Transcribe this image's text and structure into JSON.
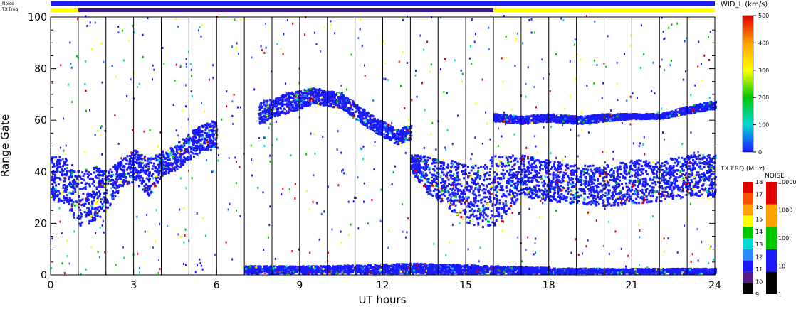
{
  "chart_data": {
    "type": "heatmap",
    "xlabel": "UT hours",
    "ylabel": "Range Gate",
    "xlim": [
      0,
      24
    ],
    "ylim": [
      0,
      100
    ],
    "xticks": [
      "0",
      "3",
      "6",
      "9",
      "12",
      "15",
      "18",
      "21",
      "24"
    ],
    "yticks": [
      "0",
      "20",
      "40",
      "60",
      "80",
      "100"
    ],
    "hour_gridlines": true,
    "bars": {
      "noise_label": "Noise",
      "txfreq_label": "TX Freq",
      "noise_level_segments": [
        {
          "from": 0,
          "to": 24,
          "color": "#1a1aff"
        }
      ],
      "txfreq_segments": [
        {
          "from": 0,
          "to": 1.0,
          "color": "#ffff00"
        },
        {
          "from": 1.0,
          "to": 16.0,
          "color": "#3a1a8a"
        },
        {
          "from": 16.0,
          "to": 24,
          "color": "#ffff00"
        }
      ]
    },
    "colorbars": {
      "width": {
        "title": "WID_L (km/s)",
        "ticks": [
          "0",
          "100",
          "200",
          "300",
          "400",
          "500"
        ],
        "range": [
          0,
          500
        ]
      },
      "txfreq": {
        "title": "TX FRQ (MHz)",
        "ticks": [
          "9",
          "10",
          "11",
          "12",
          "13",
          "14",
          "15",
          "16",
          "17",
          "18"
        ],
        "colors": [
          "#000000",
          "#5a1a8a",
          "#1a1aff",
          "#2a8aff",
          "#00d8d8",
          "#00c800",
          "#ffff00",
          "#ffa000",
          "#ff5000",
          "#e00000"
        ]
      },
      "noise": {
        "title": "NOISE",
        "ticks": [
          "1",
          "10",
          "100",
          "1000",
          "10000"
        ],
        "colors": [
          "#000000",
          "#1a1aff",
          "#00c800",
          "#ffa000",
          "#e00000"
        ]
      }
    },
    "structures": [
      {
        "name": "band-early",
        "x": [
          0.0,
          0.5,
          1.0,
          1.5,
          2.0,
          2.5,
          3.0,
          3.5,
          4.0,
          4.5,
          5.0,
          5.5,
          6.0
        ],
        "lower": [
          28,
          27,
          18,
          20,
          24,
          33,
          36,
          30,
          38,
          40,
          44,
          48,
          48
        ],
        "upper": [
          46,
          45,
          40,
          42,
          40,
          44,
          48,
          45,
          47,
          50,
          55,
          58,
          60
        ]
      },
      {
        "name": "arc-upper",
        "x": [
          7.5,
          8.5,
          9.5,
          10.5,
          11.5,
          12.5,
          13.0
        ],
        "lower": [
          58,
          62,
          66,
          64,
          56,
          50,
          52
        ],
        "upper": [
          66,
          70,
          72,
          70,
          62,
          56,
          58
        ]
      },
      {
        "name": "band-late",
        "x": [
          13.0,
          13.5,
          14.0,
          14.5,
          15.0,
          15.5,
          16.0,
          17.0,
          18.0,
          19.0,
          20.0,
          21.0,
          22.0,
          23.0,
          24.0
        ],
        "lower": [
          40,
          32,
          28,
          24,
          20,
          18,
          18,
          30,
          28,
          27,
          26,
          27,
          28,
          30,
          30
        ],
        "upper": [
          46,
          46,
          44,
          44,
          42,
          42,
          46,
          46,
          44,
          42,
          42,
          44,
          44,
          46,
          46
        ]
      },
      {
        "name": "band-upper-late",
        "x": [
          16.0,
          17.0,
          18.0,
          19.0,
          20.0,
          21.0,
          22.0,
          23.0,
          24.0
        ],
        "lower": [
          59,
          58,
          59,
          58,
          59,
          60,
          60,
          62,
          64
        ],
        "upper": [
          62,
          61,
          62,
          61,
          62,
          62,
          62,
          65,
          67
        ]
      },
      {
        "name": "ground-low",
        "x": [
          7.0,
          10.0,
          13.0,
          16.0,
          19.0,
          22.0,
          24.0
        ],
        "lower": [
          0,
          0,
          0,
          0,
          0,
          0,
          0
        ],
        "upper": [
          3,
          3,
          4,
          3,
          2,
          2,
          2
        ]
      }
    ]
  }
}
